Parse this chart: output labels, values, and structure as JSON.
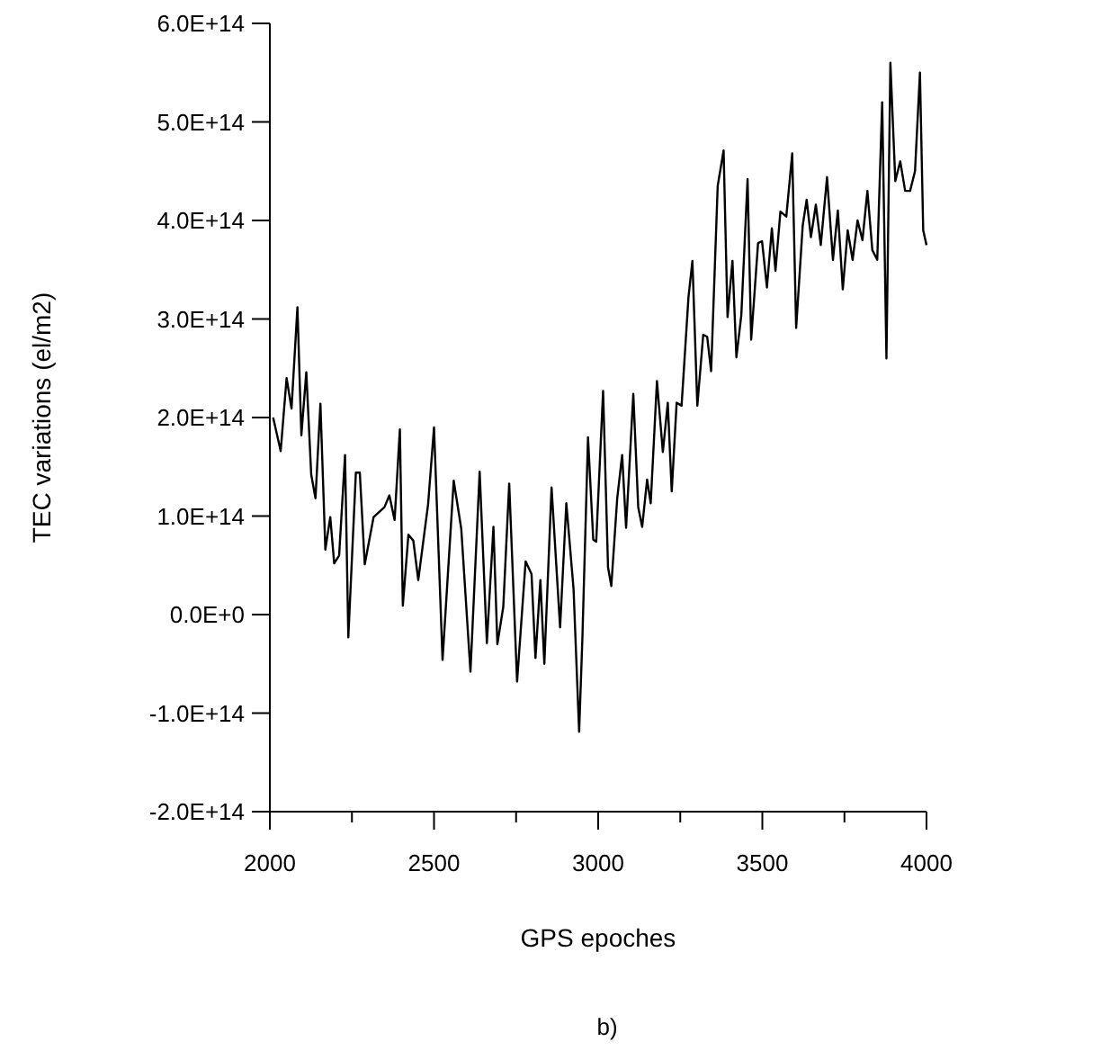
{
  "chart_data": {
    "type": "line",
    "xlabel": "GPS epoches",
    "ylabel": "TEC variations (el/m2)",
    "annotations": [
      "b)"
    ],
    "xlim": [
      2000,
      4000
    ],
    "ylim": [
      -200000000000000.0,
      600000000000000.0
    ],
    "xticks": [
      2000,
      {
        "value": 2250,
        "label": null
      },
      2500,
      {
        "value": 2750,
        "label": null
      },
      3000,
      {
        "value": 3250,
        "label": null
      },
      3500,
      {
        "value": 3750,
        "label": null
      },
      4000
    ],
    "yticks": [
      {
        "value": -200000000000000.0,
        "label": "-2.0E+14"
      },
      {
        "value": -100000000000000.0,
        "label": "-1.0E+14"
      },
      {
        "value": 0,
        "label": "0.0E+0"
      },
      {
        "value": 100000000000000.0,
        "label": "1.0E+14"
      },
      {
        "value": 200000000000000.0,
        "label": "2.0E+14"
      },
      {
        "value": 300000000000000.0,
        "label": "3.0E+14"
      },
      {
        "value": 400000000000000.0,
        "label": "4.0E+14"
      },
      {
        "value": 500000000000000.0,
        "label": "5.0E+14"
      },
      {
        "value": 600000000000000.0,
        "label": "6.0E+14"
      }
    ],
    "x": [
      2010,
      2033,
      2051,
      2066,
      2084,
      2096,
      2111,
      2126,
      2139,
      2154,
      2169,
      2184,
      2196,
      2211,
      2229,
      2239,
      2262,
      2274,
      2289,
      2316,
      2349,
      2364,
      2380,
      2396,
      2405,
      2422,
      2437,
      2452,
      2482,
      2500,
      2526,
      2560,
      2583,
      2611,
      2639,
      2661,
      2681,
      2693,
      2711,
      2729,
      2753,
      2779,
      2797,
      2809,
      2824,
      2836,
      2858,
      2884,
      2903,
      2925,
      2942,
      2952,
      2969,
      2985,
      2994,
      3015,
      3030,
      3040,
      3058,
      3073,
      3085,
      3107,
      3122,
      3134,
      3149,
      3160,
      3179,
      3197,
      3212,
      3224,
      3239,
      3254,
      3275,
      3287,
      3302,
      3320,
      3332,
      3344,
      3364,
      3382,
      3394,
      3409,
      3421,
      3436,
      3455,
      3466,
      3487,
      3499,
      3514,
      3529,
      3540,
      3555,
      3573,
      3591,
      3603,
      3623,
      3635,
      3648,
      3663,
      3678,
      3697,
      3715,
      3730,
      3745,
      3760,
      3775,
      3790,
      3805,
      3820,
      3835,
      3850,
      3865,
      3878,
      3890,
      3905,
      3920,
      3935,
      3950,
      3965,
      3980,
      3990,
      4000
    ],
    "series": [
      {
        "color": "#000000",
        "values": [
          200000000000000.0,
          166000000000000.0,
          240000000000000.0,
          209000000000000.0,
          312000000000000.0,
          182000000000000.0,
          246000000000000.0,
          142000000000000.0,
          118000000000000.0,
          214000000000000.0,
          66000000000000.0,
          99000000000000.0,
          52000000000000.0,
          60000000000000.0,
          162000000000000.0,
          -23000000000000.0,
          144000000000000.0,
          144000000000000.0,
          51000000000000.0,
          99000000000000.0,
          109000000000000.0,
          121000000000000.0,
          96000000000000.0,
          188000000000000.0,
          9000000000000.0,
          81000000000000.0,
          75000000000000.0,
          35000000000000.0,
          112000000000000.0,
          190000000000000.0,
          -46000000000000.0,
          136000000000000.0,
          87000000000000.0,
          -58000000000000.0,
          145000000000000.0,
          -29000000000000.0,
          89000000000000.0,
          -30000000000000.0,
          8000000000000.0,
          133000000000000.0,
          -68000000000000.0,
          54000000000000.0,
          41000000000000.0,
          -44000000000000.0,
          35000000000000.0,
          -50000000000000.0,
          129000000000000.0,
          -13000000000000.0,
          113000000000000.0,
          26000000000000.0,
          -119000000000000.0,
          -23000000000000.0,
          180000000000000.0,
          76000000000000.0,
          74000000000000.0,
          227000000000000.0,
          48000000000000.0,
          29000000000000.0,
          118000000000000.0,
          162000000000000.0,
          88000000000000.0,
          224000000000000.0,
          109000000000000.0,
          89000000000000.0,
          137000000000000.0,
          113000000000000.0,
          237000000000000.0,
          165000000000000.0,
          215000000000000.0,
          125000000000000.0,
          215000000000000.0,
          212000000000000.0,
          322000000000000.0,
          359000000000000.0,
          212000000000000.0,
          284000000000000.0,
          282000000000000.0,
          247000000000000.0,
          435000000000000.0,
          471000000000000.0,
          302000000000000.0,
          359000000000000.0,
          261000000000000.0,
          304000000000000.0,
          442000000000000.0,
          279000000000000.0,
          377000000000000.0,
          379000000000000.0,
          332000000000000.0,
          392000000000000.0,
          349000000000000.0,
          409000000000000.0,
          404000000000000.0,
          468000000000000.0,
          291000000000000.0,
          395000000000000.0,
          421000000000000.0,
          383000000000000.0,
          416000000000000.0,
          375000000000000.0,
          444000000000000.0,
          360000000000000.0,
          410000000000000.0,
          330000000000000.0,
          390000000000000.0,
          360000000000000.0,
          400000000000000.0,
          380000000000000.0,
          430000000000000.0,
          370000000000000.0,
          360000000000000.0,
          520000000000000.0,
          260000000000000.0,
          560000000000000.0,
          440000000000000.0,
          460000000000000.0,
          430000000000000.0,
          430000000000000.0,
          450000000000000.0,
          550000000000000.0,
          390000000000000.0,
          375000000000000.0
        ]
      }
    ]
  }
}
